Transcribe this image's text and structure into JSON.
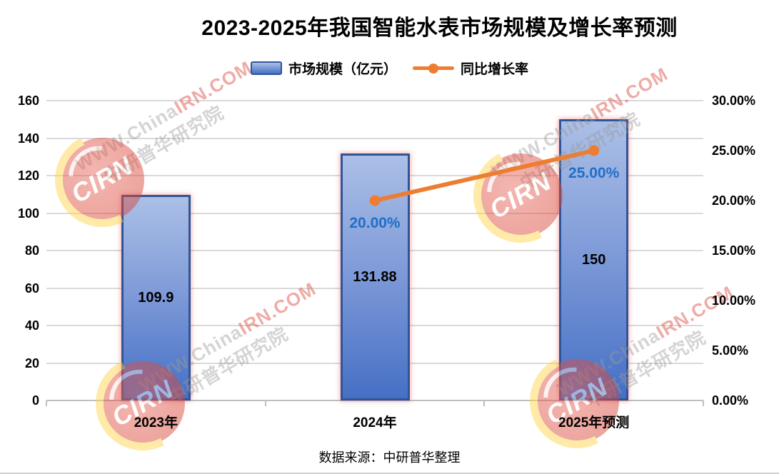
{
  "title": "2023-2025年我国智能水表市场规模及增长率预测",
  "legend": {
    "bar_label": "市场规模（亿元）",
    "line_label": "同比增长率"
  },
  "footer": "数据来源：中研普华整理",
  "watermark": {
    "en_gray": "WWW.China",
    "en_red": "IRN.COM",
    "cn": "中研普华研究院",
    "logo": "CIRN"
  },
  "colors": {
    "bar_gradient_top": "#ABBFE6",
    "bar_gradient_bottom": "#4670C5",
    "bar_border": "#2F5597",
    "bar_glow_red": "#F25A5A",
    "line_orange": "#ED7D31",
    "percent_label_blue": "#1E6FC8",
    "gridline_gray": "#D9D9D9",
    "axis_gray": "#BFBFBF",
    "text_black": "#000000"
  },
  "chart_data": {
    "type": "bar",
    "subtype": "combo-bar-line-dual-axis",
    "title": "2023-2025年我国智能水表市场规模及增长率预测",
    "xlabel": "",
    "ylabel_left": "市场规模（亿元）",
    "ylabel_right": "同比增长率",
    "categories": [
      "2023年",
      "2024年",
      "2025年预测"
    ],
    "series": [
      {
        "name": "市场规模（亿元）",
        "type": "bar",
        "axis": "left",
        "values": [
          109.9,
          131.88,
          150
        ],
        "data_labels": [
          "109.9",
          "131.88",
          "150"
        ]
      },
      {
        "name": "同比增长率",
        "type": "line",
        "axis": "right",
        "values_pct": [
          null,
          20,
          25
        ],
        "data_labels": [
          null,
          "20.00%",
          "25.00%"
        ]
      }
    ],
    "left_axis": {
      "min": 0,
      "max": 160,
      "step": 20,
      "ticks": [
        "0",
        "20",
        "40",
        "60",
        "80",
        "100",
        "120",
        "140",
        "160"
      ]
    },
    "right_axis": {
      "min_pct": 0,
      "max_pct": 30,
      "step_pct": 5,
      "ticks": [
        "0.00%",
        "5.00%",
        "10.00%",
        "15.00%",
        "20.00%",
        "25.00%",
        "30.00%"
      ]
    },
    "gridlines": "horizontal",
    "legend_position": "top",
    "data_source": "数据来源：中研普华整理"
  }
}
